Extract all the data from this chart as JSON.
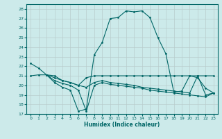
{
  "xlabel": "Humidex (Indice chaleur)",
  "bg_color": "#cceaea",
  "line_color": "#006666",
  "grid_color": "#aacccc",
  "xlim": [
    -0.5,
    23.5
  ],
  "ylim": [
    17,
    28.5
  ],
  "yticks": [
    17,
    18,
    19,
    20,
    21,
    22,
    23,
    24,
    25,
    26,
    27,
    28
  ],
  "xticks": [
    0,
    1,
    2,
    3,
    4,
    5,
    6,
    7,
    8,
    9,
    10,
    11,
    12,
    13,
    14,
    15,
    16,
    17,
    18,
    19,
    20,
    21,
    22,
    23
  ],
  "line1_x": [
    0,
    1,
    2,
    3,
    4,
    5,
    6,
    7,
    8,
    9,
    10,
    11,
    12,
    13,
    14,
    15,
    16,
    17,
    18,
    19,
    20,
    21,
    22,
    23
  ],
  "line1_y": [
    22.3,
    21.8,
    21.1,
    20.3,
    19.8,
    19.5,
    17.3,
    17.5,
    23.2,
    24.5,
    27.0,
    27.1,
    27.8,
    27.7,
    27.8,
    27.1,
    25.0,
    23.3,
    19.3,
    19.4,
    21.0,
    20.8,
    19.7,
    19.2
  ],
  "line2_x": [
    0,
    1,
    2,
    3,
    4,
    5,
    6,
    7,
    8,
    9,
    10,
    11,
    12,
    13,
    14,
    15,
    16,
    17,
    18,
    19,
    20,
    21,
    22,
    23
  ],
  "line2_y": [
    21.0,
    21.1,
    21.1,
    21.0,
    20.5,
    20.3,
    20.0,
    20.8,
    21.0,
    21.0,
    21.0,
    21.0,
    21.0,
    21.0,
    21.0,
    21.0,
    21.0,
    21.0,
    21.0,
    21.0,
    21.0,
    21.0,
    21.0,
    21.0
  ],
  "line3_x": [
    2,
    3,
    4,
    5,
    6,
    7,
    8,
    9,
    10,
    11,
    12,
    13,
    14,
    15,
    16,
    17,
    18,
    19,
    20,
    21,
    22,
    23
  ],
  "line3_y": [
    21.1,
    20.8,
    20.5,
    20.3,
    20.0,
    19.8,
    20.3,
    20.5,
    20.3,
    20.2,
    20.1,
    20.0,
    19.8,
    19.7,
    19.6,
    19.5,
    19.4,
    19.3,
    19.2,
    21.0,
    19.0,
    19.2
  ],
  "line4_x": [
    2,
    3,
    4,
    5,
    6,
    7,
    8,
    9,
    10,
    11,
    12,
    13,
    14,
    15,
    16,
    17,
    18,
    19,
    20,
    21,
    22,
    23
  ],
  "line4_y": [
    21.1,
    20.5,
    20.2,
    20.0,
    19.5,
    17.3,
    20.0,
    20.3,
    20.1,
    20.0,
    19.9,
    19.8,
    19.7,
    19.5,
    19.4,
    19.3,
    19.2,
    19.1,
    19.0,
    18.9,
    18.8,
    19.2
  ]
}
